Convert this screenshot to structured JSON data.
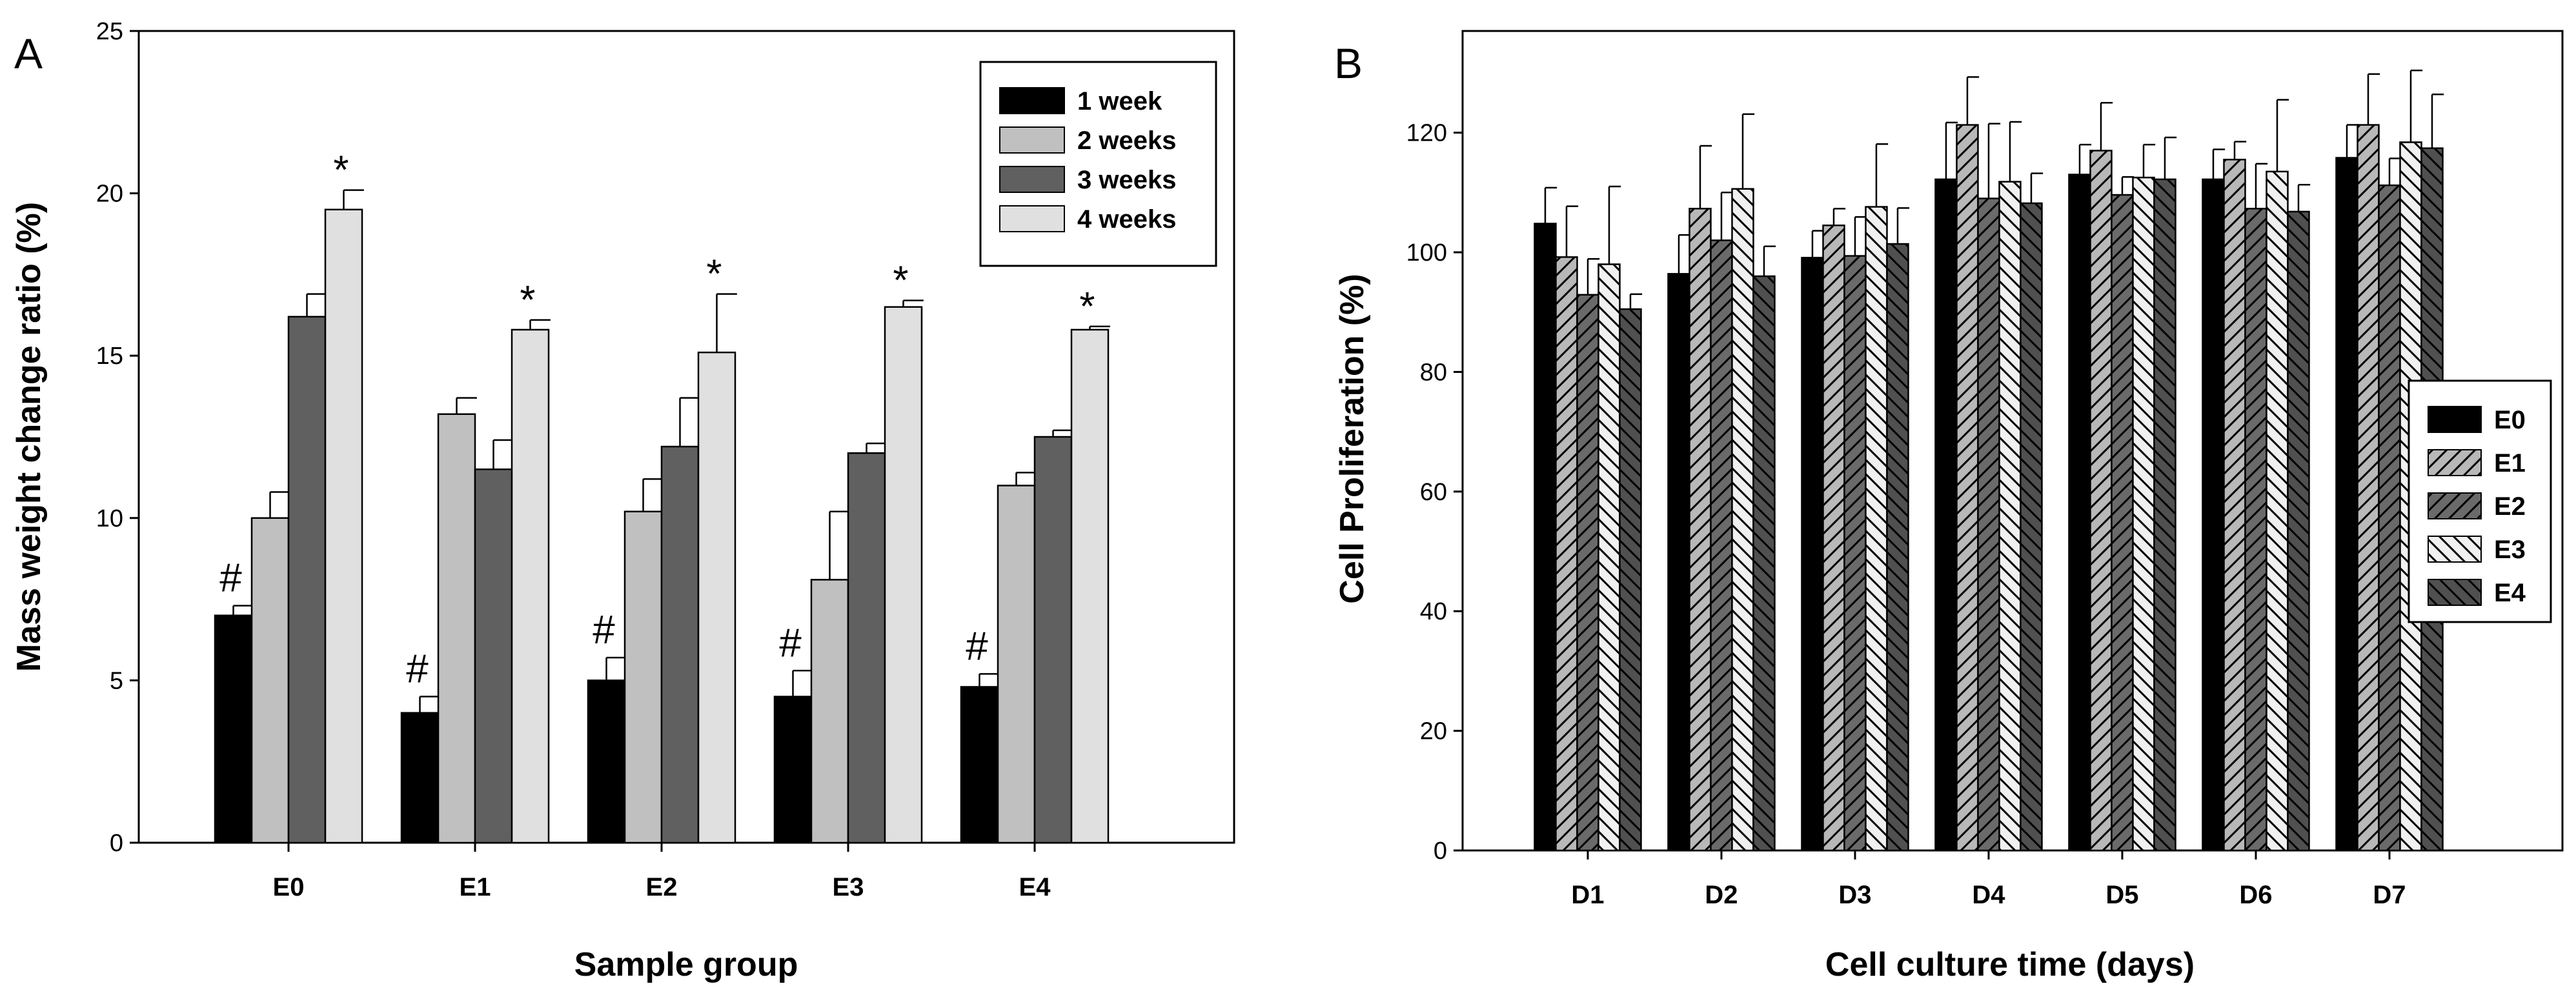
{
  "chart_data": [
    {
      "type": "bar",
      "panel_label": "A",
      "xlabel": "Sample group",
      "ylabel": "Mass weight change ratio (%)",
      "ylim": [
        0,
        25
      ],
      "yticks": [
        0,
        5,
        10,
        15,
        20,
        25
      ],
      "categories": [
        "E0",
        "E1",
        "E2",
        "E3",
        "E4"
      ],
      "series": [
        {
          "name": "1 week",
          "values": [
            7.0,
            4.0,
            5.0,
            4.5,
            4.8
          ],
          "errors": [
            0.3,
            0.5,
            0.7,
            0.8,
            0.4
          ],
          "color": "#000000",
          "pattern": "solid"
        },
        {
          "name": "2 weeks",
          "values": [
            10.0,
            13.2,
            10.2,
            8.1,
            11.0
          ],
          "errors": [
            0.8,
            0.5,
            1.0,
            2.1,
            0.4
          ],
          "color": "#c0c0c0",
          "pattern": "solid"
        },
        {
          "name": "3 weeks",
          "values": [
            16.2,
            11.5,
            12.2,
            12.0,
            12.5
          ],
          "errors": [
            0.7,
            0.9,
            1.5,
            0.3,
            0.2
          ],
          "color": "#606060",
          "pattern": "solid"
        },
        {
          "name": "4 weeks",
          "values": [
            19.5,
            15.8,
            15.1,
            16.5,
            15.8
          ],
          "errors": [
            0.6,
            0.3,
            1.8,
            0.2,
            0.1
          ],
          "color": "#e0e0e0",
          "pattern": "solid"
        }
      ],
      "annotations": [
        {
          "text": "#",
          "category": "E0",
          "series": "1 week"
        },
        {
          "text": "#",
          "category": "E1",
          "series": "1 week"
        },
        {
          "text": "#",
          "category": "E2",
          "series": "1 week"
        },
        {
          "text": "#",
          "category": "E3",
          "series": "1 week"
        },
        {
          "text": "#",
          "category": "E4",
          "series": "1 week"
        },
        {
          "text": "*",
          "category": "E0",
          "series": "4 weeks"
        },
        {
          "text": "*",
          "category": "E1",
          "series": "4 weeks"
        },
        {
          "text": "*",
          "category": "E2",
          "series": "4 weeks"
        },
        {
          "text": "*",
          "category": "E3",
          "series": "4 weeks"
        },
        {
          "text": "*",
          "category": "E4",
          "series": "4 weeks"
        }
      ],
      "legend_position": "top-right"
    },
    {
      "type": "bar",
      "panel_label": "B",
      "xlabel": "Cell culture time (days)",
      "ylabel": "Cell Proliferation (%)",
      "ylim": [
        0,
        137
      ],
      "yticks": [
        0,
        20,
        40,
        60,
        80,
        100,
        120
      ],
      "categories": [
        "D1",
        "D2",
        "D3",
        "D4",
        "D5",
        "D6",
        "D7"
      ],
      "series": [
        {
          "name": "E0",
          "values": [
            104.8,
            96.4,
            99.1,
            112.2,
            113.0,
            112.2,
            115.8
          ],
          "errors": [
            6.0,
            6.5,
            4.5,
            9.5,
            5.0,
            5.0,
            5.5
          ],
          "color": "#000000",
          "pattern": "solid"
        },
        {
          "name": "E1",
          "values": [
            99.2,
            107.3,
            104.5,
            121.3,
            117.0,
            115.5,
            121.3
          ],
          "errors": [
            8.5,
            10.5,
            2.8,
            8.0,
            8.0,
            3.0,
            8.5
          ],
          "color": "#b8b8b8",
          "pattern": "hatch-fwd"
        },
        {
          "name": "E2",
          "values": [
            92.9,
            102.0,
            99.4,
            109.0,
            109.6,
            107.3,
            111.2
          ],
          "errors": [
            6.0,
            8.0,
            6.5,
            12.5,
            3.0,
            7.5,
            4.5
          ],
          "color": "#6a6a6a",
          "pattern": "hatch-fwd"
        },
        {
          "name": "E3",
          "values": [
            98.0,
            110.6,
            107.6,
            111.8,
            112.5,
            113.5,
            118.4
          ],
          "errors": [
            13.0,
            12.5,
            10.5,
            10.0,
            5.5,
            12.0,
            12.0
          ],
          "color": "#f0f0f0",
          "pattern": "hatch-back"
        },
        {
          "name": "E4",
          "values": [
            90.5,
            96.0,
            101.4,
            108.2,
            112.2,
            106.8,
            117.4
          ],
          "errors": [
            2.5,
            5.0,
            6.0,
            5.0,
            7.0,
            4.5,
            9.0
          ],
          "color": "#505050",
          "pattern": "hatch-back"
        }
      ],
      "legend_position": "right"
    }
  ]
}
